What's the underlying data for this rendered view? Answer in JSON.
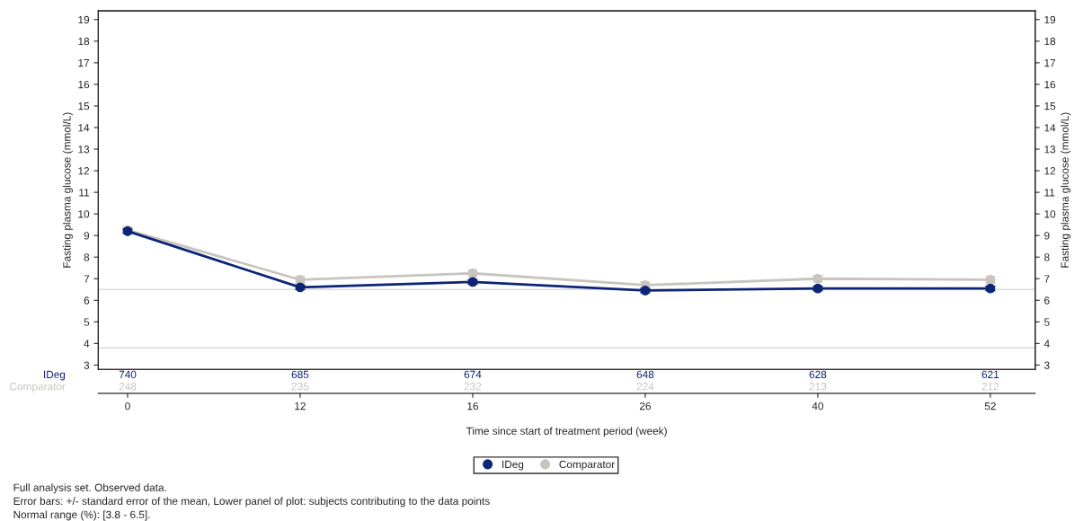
{
  "chart_data": [
    {
      "type": "line",
      "ylabel": "Fasting plasma glucose (mmol/L)",
      "y2label": "Fasting plasma glucose (mmol/L)",
      "categories": [
        null,
        null,
        null,
        null,
        null,
        null
      ],
      "series": [
        {
          "name": "IDeg",
          "color": "#0c2577",
          "values": [
            9.2,
            6.6,
            6.85,
            6.45,
            6.55,
            6.55
          ],
          "errors": [
            0.1,
            0.1,
            0.1,
            0.1,
            0.1,
            0.1
          ]
        },
        {
          "name": "Comparator",
          "color": "#c8c4be",
          "values": [
            9.25,
            6.95,
            7.25,
            6.7,
            7.0,
            6.95
          ],
          "errors": [
            0.12,
            0.15,
            0.15,
            0.15,
            0.15,
            0.15
          ]
        }
      ],
      "ylim": [
        2.8,
        19.4
      ],
      "yticks": [
        3,
        4,
        5,
        6,
        7,
        8,
        9,
        10,
        11,
        12,
        13,
        14,
        15,
        16,
        17,
        18,
        19
      ],
      "y2lim": [
        2.8,
        19.4
      ],
      "y2ticks": [
        3,
        4,
        5,
        6,
        7,
        8,
        9,
        10,
        11,
        12,
        13,
        14,
        15,
        16,
        17,
        18,
        19
      ],
      "ref_lines": [
        {
          "axis": "y",
          "value": 3.8,
          "color": "#dcdcdc"
        },
        {
          "axis": "y",
          "value": 6.5,
          "color": "#dcdcdc"
        }
      ],
      "marker": "circle",
      "line_style": "solid",
      "grid": false,
      "legend": "bottom",
      "tick_labels": "y"
    },
    {
      "type": "other",
      "xlabel": "Time since start of treatment period (week)",
      "categories": [
        "0",
        "12",
        "16",
        "26",
        "40",
        "52"
      ],
      "series": [
        {
          "name": "IDeg",
          "color": "#0c2577",
          "values": [
            740,
            685,
            674,
            648,
            628,
            621
          ]
        },
        {
          "name": "Comparator",
          "color": "#c8c4be",
          "values": [
            248,
            235,
            232,
            224,
            213,
            212
          ]
        }
      ],
      "data_labels": true,
      "annotations": [
        "Full analysis set. Observed data.",
        "Error bars: +/- standard error of the mean, Lower panel of plot: subjects contributing to the data points",
        "Normal range (%): [3.8 - 6.5]."
      ]
    }
  ]
}
